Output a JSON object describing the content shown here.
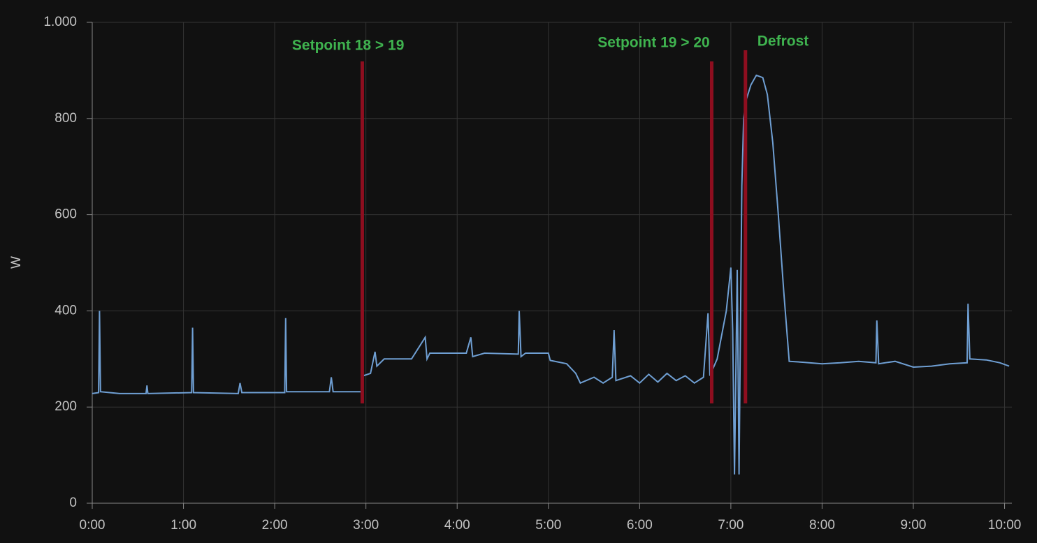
{
  "chart_data": {
    "type": "line",
    "ylabel": "W",
    "xlim": [
      0,
      10.08
    ],
    "ylim": [
      0,
      1000
    ],
    "xticks": [
      {
        "value": 0,
        "label": "0:00"
      },
      {
        "value": 1,
        "label": "1:00"
      },
      {
        "value": 2,
        "label": "2:00"
      },
      {
        "value": 3,
        "label": "3:00"
      },
      {
        "value": 4,
        "label": "4:00"
      },
      {
        "value": 5,
        "label": "5:00"
      },
      {
        "value": 6,
        "label": "6:00"
      },
      {
        "value": 7,
        "label": "7:00"
      },
      {
        "value": 8,
        "label": "8:00"
      },
      {
        "value": 9,
        "label": "9:00"
      },
      {
        "value": 10,
        "label": "10:00"
      }
    ],
    "yticks": [
      0,
      200,
      400,
      600,
      800,
      {
        "value": 1000,
        "label": "1.000"
      }
    ],
    "grid": true,
    "x": [
      0,
      0.07,
      0.08,
      0.09,
      0.3,
      0.59,
      0.6,
      0.61,
      1.09,
      1.1,
      1.11,
      1.6,
      1.62,
      1.64,
      2.11,
      2.12,
      2.13,
      2.6,
      2.62,
      2.64,
      2.95,
      2.97,
      3.05,
      3.1,
      3.12,
      3.2,
      3.5,
      3.65,
      3.67,
      3.7,
      4.1,
      4.15,
      4.17,
      4.3,
      4.67,
      4.68,
      4.7,
      4.75,
      5.0,
      5.02,
      5.2,
      5.3,
      5.35,
      5.5,
      5.6,
      5.7,
      5.72,
      5.74,
      5.9,
      6.0,
      6.1,
      6.2,
      6.3,
      6.4,
      6.5,
      6.6,
      6.7,
      6.75,
      6.77,
      6.85,
      6.95,
      7.0,
      7.02,
      7.04,
      7.07,
      7.09,
      7.12,
      7.14,
      7.17,
      7.22,
      7.28,
      7.35,
      7.4,
      7.46,
      7.52,
      7.58,
      7.64,
      7.8,
      8.0,
      8.2,
      8.4,
      8.59,
      8.6,
      8.62,
      8.8,
      9.0,
      9.2,
      9.4,
      9.59,
      9.6,
      9.62,
      9.8,
      9.95,
      10.05
    ],
    "series": [
      {
        "color": "#6f9fd3",
        "values": [
          228,
          230,
          400,
          232,
          228,
          228,
          245,
          228,
          230,
          365,
          230,
          228,
          250,
          230,
          230,
          385,
          232,
          232,
          262,
          232,
          232,
          265,
          270,
          315,
          285,
          300,
          300,
          345,
          300,
          312,
          312,
          345,
          305,
          312,
          310,
          400,
          305,
          312,
          312,
          297,
          290,
          270,
          250,
          262,
          250,
          262,
          360,
          255,
          265,
          250,
          268,
          252,
          270,
          255,
          265,
          250,
          262,
          395,
          265,
          300,
          400,
          490,
          360,
          60,
          485,
          60,
          660,
          800,
          840,
          870,
          890,
          885,
          850,
          750,
          600,
          440,
          295,
          293,
          290,
          292,
          295,
          292,
          380,
          290,
          295,
          283,
          285,
          290,
          292,
          415,
          300,
          298,
          292,
          285
        ]
      }
    ],
    "annotations": [
      {
        "x": 2.96,
        "text": "Setpoint 18 > 19",
        "color": "#8e0e1f"
      },
      {
        "x": 6.79,
        "text": "Setpoint 19 > 20",
        "color": "#8e0e1f"
      },
      {
        "x": 7.16,
        "text": "Defrost",
        "color": "#8e0e1f"
      }
    ]
  }
}
